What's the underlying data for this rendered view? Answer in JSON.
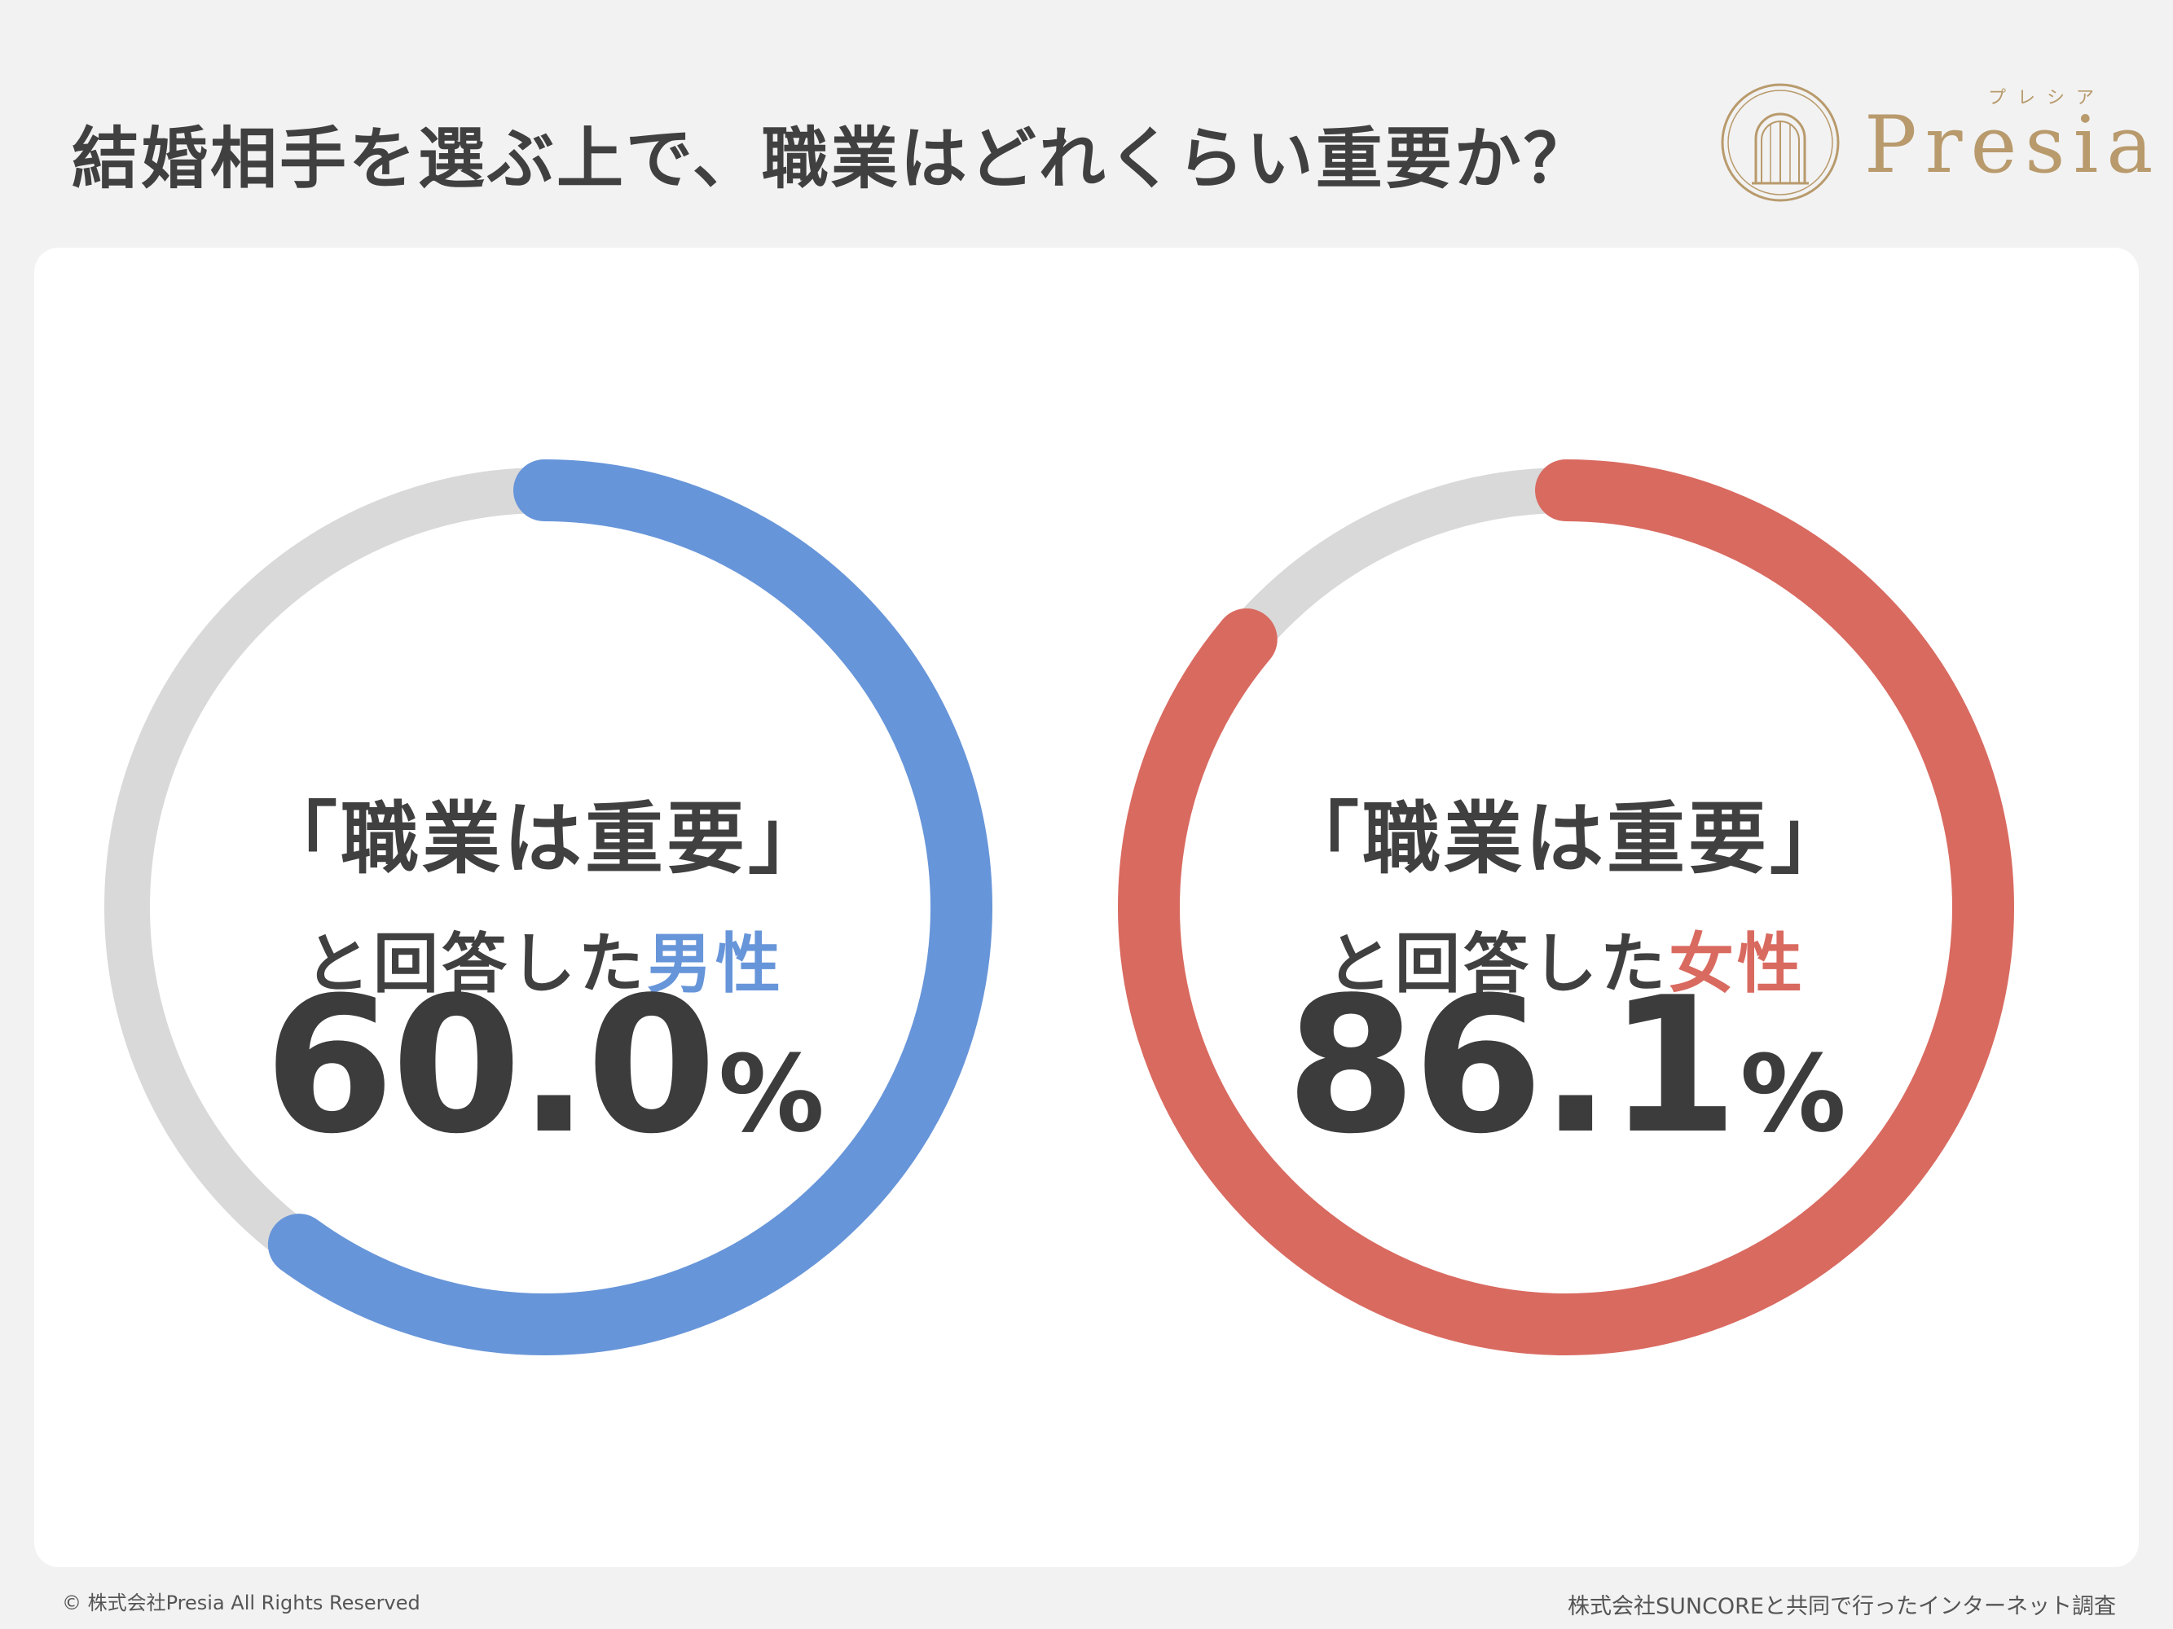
{
  "title": "結婚相手を選ぶ上で、職業はどれくらい重要か？",
  "logo": {
    "text": "Presia",
    "kana": "プレシア"
  },
  "copyright": "© 株式会社Presia All Rights Reserved",
  "source": "株式会社SUNCOREと共同で行ったインターネット調査",
  "colors": {
    "male": "#6795d9",
    "female": "#d96a60",
    "track": "#d9d9d9",
    "logo": "#b89a6c"
  },
  "chart_data": [
    {
      "type": "pie",
      "label_line1": "「職業は重要」",
      "label_line2_prefix": "と回答した",
      "group": "男性",
      "value_text": "60.0",
      "unit": "%",
      "values": [
        60.0,
        40.0
      ]
    },
    {
      "type": "pie",
      "label_line1": "「職業は重要」",
      "label_line2_prefix": "と回答した",
      "group": "女性",
      "value_text": "86.1",
      "unit": "%",
      "values": [
        86.1,
        13.9
      ]
    }
  ]
}
